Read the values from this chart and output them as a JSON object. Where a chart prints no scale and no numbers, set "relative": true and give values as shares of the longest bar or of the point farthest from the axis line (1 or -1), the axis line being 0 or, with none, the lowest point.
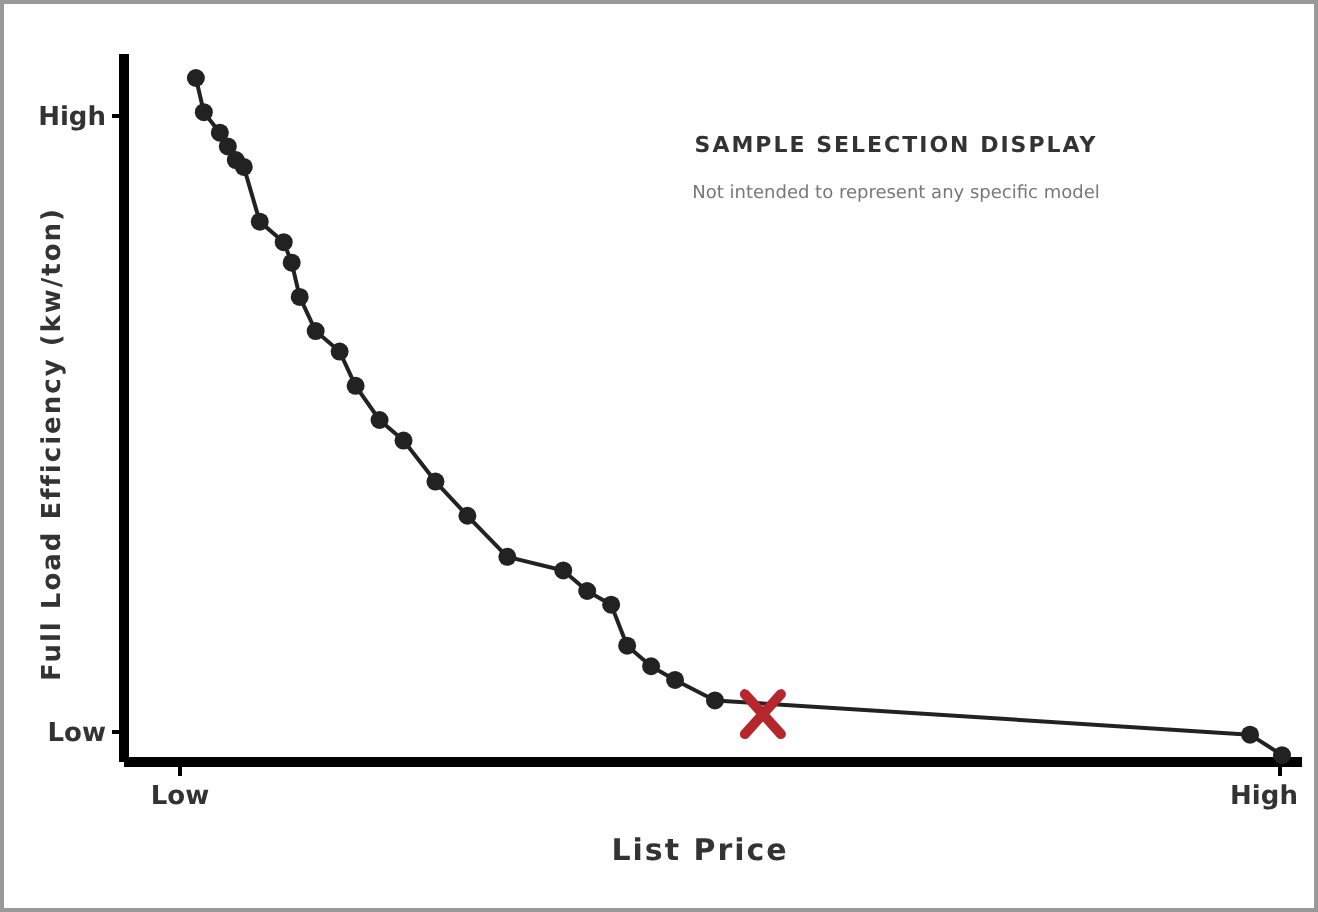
{
  "chart_data": {
    "type": "line",
    "relative": true,
    "title": "SAMPLE SELECTION DISPLAY",
    "subtitle": "Not intended to represent any specific model",
    "xlabel": "List Price",
    "ylabel": "Full Load Efficiency (kw/ton)",
    "annotations": [
      "High",
      "Low",
      "Low",
      "High"
    ],
    "grid": false,
    "categories": [
      null,
      null,
      null,
      null,
      null,
      null,
      null,
      null,
      null,
      null,
      null,
      null,
      null,
      null,
      null,
      null,
      null,
      null,
      null,
      null,
      null,
      null,
      null,
      null,
      null,
      null,
      null,
      null,
      null,
      null,
      null,
      null,
      null,
      null,
      null,
      null,
      null,
      null,
      null,
      null,
      null,
      null,
      null,
      null,
      null,
      null,
      null,
      null,
      null,
      null,
      null,
      null,
      null,
      null,
      null,
      null,
      null,
      null,
      null,
      null,
      null,
      null,
      null,
      null,
      null,
      null,
      null,
      null,
      null,
      null,
      null,
      null,
      null,
      null,
      null,
      null,
      null,
      null,
      null,
      null,
      null,
      null,
      null,
      null,
      null,
      null,
      null,
      null,
      null,
      null,
      null,
      null,
      null,
      null,
      null,
      null,
      null,
      null,
      null,
      null,
      null,
      null,
      null,
      null,
      null,
      null,
      null,
      null,
      null,
      null,
      null,
      null,
      null,
      null,
      null,
      null,
      null,
      null,
      null,
      null,
      null,
      null,
      null,
      null,
      null,
      null,
      null,
      null,
      null,
      null,
      null,
      null,
      null,
      null,
      null,
      null,
      null,
      null,
      null,
      null,
      null,
      null,
      null,
      null,
      null,
      null
    ],
    "series": [
      {
        "color": "#222222",
        "marker": "circle",
        "line_style": "solid",
        "values": [
          null,
          null,
          null,
          null,
          null,
          null,
          null,
          null,
          null,
          1.0,
          0.95,
          null,
          0.92,
          0.9,
          0.88,
          0.87,
          null,
          0.79,
          null,
          null,
          0.76,
          0.73,
          0.68,
          null,
          0.63,
          null,
          null,
          0.6,
          null,
          0.55,
          null,
          null,
          0.5,
          null,
          null,
          0.47,
          null,
          null,
          null,
          0.41,
          null,
          null,
          null,
          0.36,
          null,
          null,
          null,
          null,
          0.3,
          null,
          null,
          null,
          null,
          null,
          null,
          0.28,
          null,
          null,
          0.25,
          null,
          null,
          0.23,
          null,
          0.17,
          null,
          null,
          0.14,
          null,
          null,
          0.12,
          null,
          null,
          null,
          null,
          0.09,
          null,
          null,
          null,
          null,
          null,
          null,
          null,
          null,
          null,
          null,
          null,
          null,
          null,
          null,
          null,
          null,
          null,
          null,
          null,
          null,
          null,
          null,
          null,
          null,
          null,
          null,
          null,
          null,
          null,
          null,
          null,
          null,
          null,
          null,
          null,
          null,
          null,
          null,
          null,
          null,
          null,
          null,
          null,
          null,
          null,
          null,
          null,
          null,
          null,
          null,
          null,
          null,
          null,
          null,
          null,
          null,
          null,
          null,
          null,
          null,
          null,
          null,
          null,
          null,
          null,
          null,
          0.04,
          null,
          null,
          null,
          0.01
        ]
      },
      {
        "color": "#b5272d",
        "marker": "cross",
        "values": [
          null,
          null,
          null,
          null,
          null,
          null,
          null,
          null,
          null,
          null,
          null,
          null,
          null,
          null,
          null,
          null,
          null,
          null,
          null,
          null,
          null,
          null,
          null,
          null,
          null,
          null,
          null,
          null,
          null,
          null,
          null,
          null,
          null,
          null,
          null,
          null,
          null,
          null,
          null,
          null,
          null,
          null,
          null,
          null,
          null,
          null,
          null,
          null,
          null,
          null,
          null,
          null,
          null,
          null,
          null,
          null,
          null,
          null,
          null,
          null,
          null,
          null,
          null,
          null,
          null,
          null,
          null,
          null,
          null,
          null,
          null,
          null,
          null,
          null,
          null,
          null,
          null,
          null,
          null,
          null,
          0.07,
          null,
          null,
          null,
          null,
          null,
          null,
          null,
          null,
          null,
          null,
          null,
          null,
          null,
          null,
          null,
          null,
          null,
          null,
          null,
          null,
          null,
          null,
          null,
          null,
          null,
          null,
          null,
          null,
          null,
          null,
          null,
          null,
          null,
          null,
          null,
          null,
          null,
          null,
          null,
          null,
          null,
          null,
          null,
          null,
          null,
          null,
          null,
          null,
          null,
          null,
          null,
          null,
          null,
          null,
          null,
          null,
          null,
          null,
          null,
          null,
          null,
          null,
          null,
          null,
          null
        ]
      }
    ]
  }
}
